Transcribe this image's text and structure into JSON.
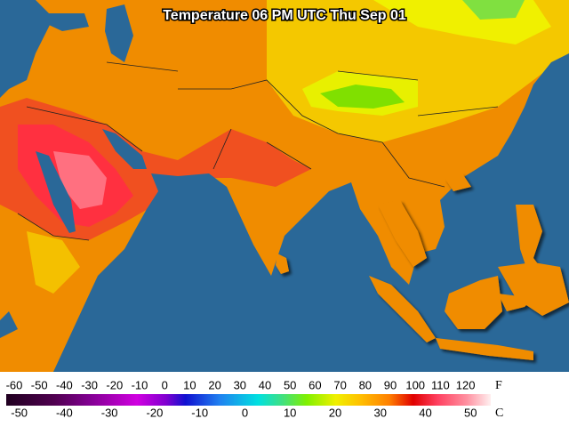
{
  "title": "Temperature 06 PM UTC Thu Sep 01",
  "legend": {
    "fahrenheit_ticks": [
      -60,
      -50,
      -40,
      -30,
      -20,
      -10,
      0,
      10,
      20,
      30,
      40,
      50,
      60,
      70,
      80,
      90,
      100,
      110,
      120
    ],
    "fahrenheit_unit": "F",
    "celsius_ticks": [
      -50,
      -40,
      -30,
      -20,
      -10,
      0,
      10,
      20,
      30,
      40,
      50
    ],
    "celsius_unit": "C"
  }
}
